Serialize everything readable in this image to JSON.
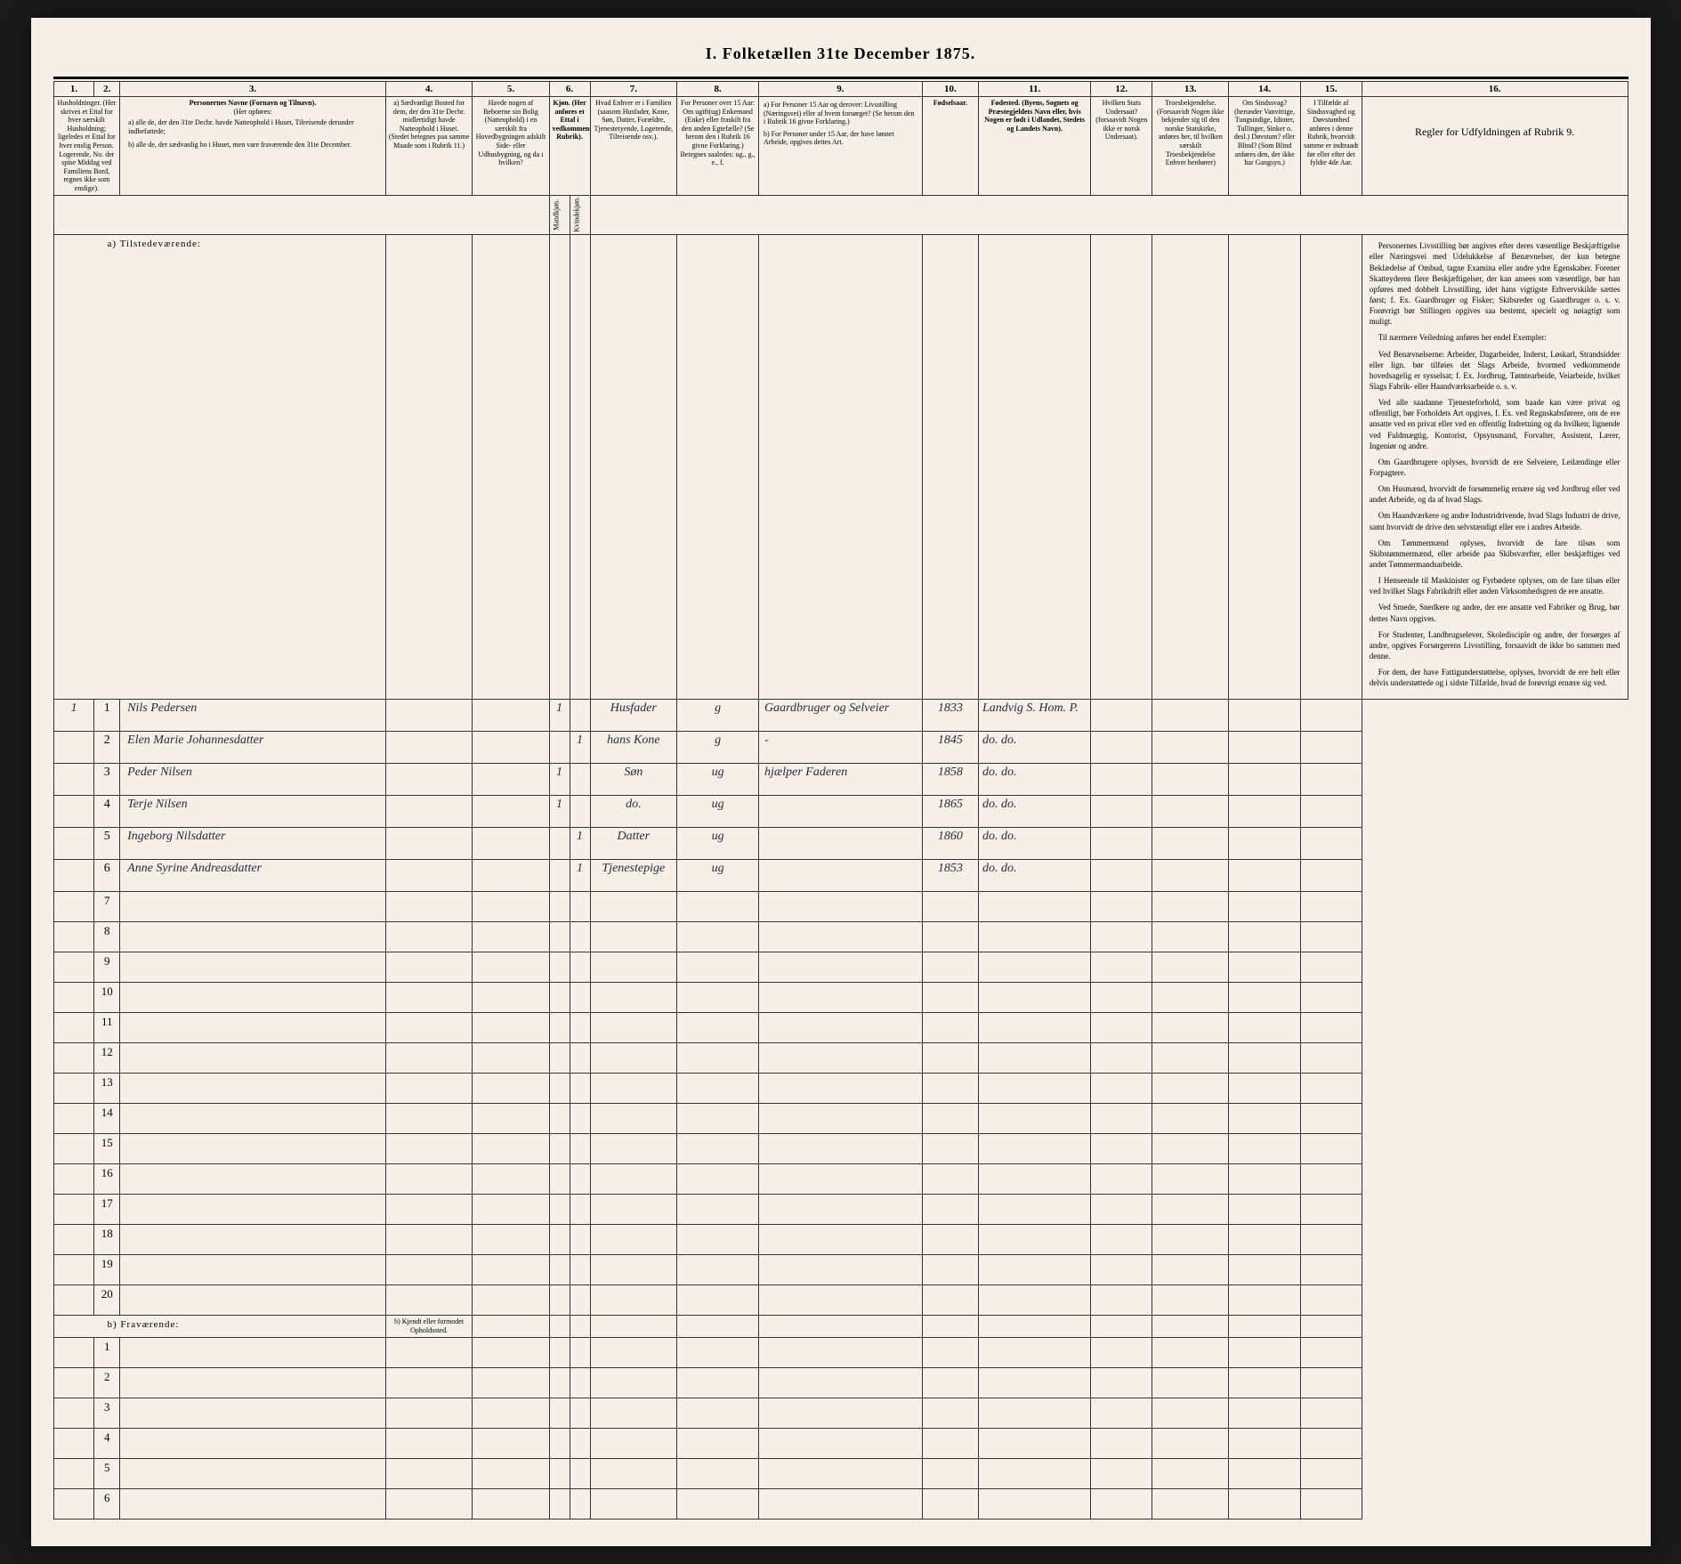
{
  "title": "I. Folketællen 31te December 1875.",
  "columns": {
    "nums": [
      "1.",
      "2.",
      "3.",
      "4.",
      "5.",
      "6.",
      "7.",
      "8.",
      "9.",
      "10.",
      "11.",
      "12.",
      "13.",
      "14.",
      "15.",
      "16."
    ],
    "widths": [
      40,
      25,
      260,
      85,
      75,
      20,
      20,
      85,
      80,
      160,
      55,
      110,
      60,
      75,
      70,
      60,
      260
    ],
    "headers": {
      "c1": "Husholdninger. (Her skrives et Ettal for hver særskilt Husholdning; ligeledes et Ettal for hver enslig Person. Logerende, No. der spise Middag ved Familiens Bord, regnes ikke som enslige).",
      "c3_title": "Personernes Navne (Fornavn og Tilnavn).",
      "c3_sub": "(Her opføres:",
      "c3_a": "a) alle de, der den 31te Decbr. havde Natteophold i Huset, Tilreisende derunder indbefattede;",
      "c3_b": "b) alle de, der sædvanlig bo i Huset, men vare fraværende den 31te December.",
      "c4": "a) Sædvanligt Bosted for dem, der den 31te Decbr. midlertidigt havde Natteophold i Huset. (Stedet betegnes paa samme Maade som i Rubrik 11.)",
      "c5": "Havde nogen af Beboerne sin Bolig (Natteophold) i en særskilt fra Hovedbygningen adskilt Side- eller Udhusbygning, og da i hvilken?",
      "c6": "Kjøn. (Her anføres et Ettal i vedkommende Rubrik).",
      "c6_m": "Mandkjøn.",
      "c6_k": "Kvindekjøn.",
      "c7": "Hvad Enhver er i Familien (saasom Husfader, Kone, Søn, Datter, Forældre, Tjenestetyende, Logerende, Tilreisende osv.).",
      "c8": "For Personer over 15 Aar: Om ugift(ug) Enkemand (Enke) eller fraskilt fra den anden Egtefælle? (Se herom den i Rubrik 16 givne Forklaring.) Betegnes saaledes: ug., g., e., f.",
      "c9_a": "a) For Personer 15 Aar og derover: Livsstilling (Næringsvei) eller af hvem forsørget? (Se herom den i Rubrik 16 givne Forklaring.)",
      "c9_b": "b) For Personer under 15 Aar, der have lønnet Arbeide, opgives dettes Art.",
      "c10": "Fødselsaar.",
      "c11": "Fødested. (Byens, Sognets og Præstegjeldets Navn eller, hvis Nogen er født i Udlandet, Stedets og Landets Navn).",
      "c12": "Hvilken Stats Undersaat? (forsaavidt Nogen ikke er norsk Undersaat).",
      "c13": "Troesbekjendelse. (Forsaavidt Nogen ikke bekjender sig til den norske Statskirke, anføres her, til hvilken særskilt Troesbekjendelse Enhver henhører)",
      "c14": "Om Sindssvag? (herunder Vanvittige, Tungsindige, Idioter, Tullinger, Sinker o. desl.) Døvstum? eller Blind? (Som Blind anføres den, der ikke har Gangsyn.)",
      "c15": "I Tilfælde af Sindssvaghed og Døvstumhed anføres i denne Rubrik, hvorvidt samme er indtraadt før eller efter det fyldte 4de Aar.",
      "c16_title": "Regler for Udfyldningen af Rubrik 9."
    }
  },
  "section_a": "a) Tilstedeværende:",
  "section_b": "b) Fraværende:",
  "section_b_col4": "b) Kjendt eller formodet Opholdssted.",
  "entries": [
    {
      "hh": "1",
      "n": "1",
      "name": "Nils Pedersen",
      "m": "1",
      "k": "",
      "rel": "Husfader",
      "ms": "g",
      "occ": "Gaardbruger og Selveier",
      "year": "1833",
      "place": "Landvig S. Hom. P."
    },
    {
      "hh": "",
      "n": "2",
      "name": "Elen Marie Johannesdatter",
      "m": "",
      "k": "1",
      "rel": "hans Kone",
      "ms": "g",
      "occ": "-",
      "year": "1845",
      "place": "do. do."
    },
    {
      "hh": "",
      "n": "3",
      "name": "Peder Nilsen",
      "m": "1",
      "k": "",
      "rel": "Søn",
      "ms": "ug",
      "occ": "hjælper Faderen",
      "year": "1858",
      "place": "do. do."
    },
    {
      "hh": "",
      "n": "4",
      "name": "Terje Nilsen",
      "m": "1",
      "k": "",
      "rel": "do.",
      "ms": "ug",
      "occ": "",
      "year": "1865",
      "place": "do. do."
    },
    {
      "hh": "",
      "n": "5",
      "name": "Ingeborg Nilsdatter",
      "m": "",
      "k": "1",
      "rel": "Datter",
      "ms": "ug",
      "occ": "",
      "year": "1860",
      "place": "do. do."
    },
    {
      "hh": "",
      "n": "6",
      "name": "Anne Syrine Andreasdatter",
      "m": "",
      "k": "1",
      "rel": "Tjenestepige",
      "ms": "ug",
      "occ": "",
      "year": "1853",
      "place": "do. do."
    }
  ],
  "empty_rows_a": [
    "7",
    "8",
    "9",
    "10",
    "11",
    "12",
    "13",
    "14",
    "15",
    "16",
    "17",
    "18",
    "19",
    "20"
  ],
  "empty_rows_b": [
    "1",
    "2",
    "3",
    "4",
    "5",
    "6"
  ],
  "rules_text": [
    "Personernes Livsstilling bør angives efter deres væsentlige Beskjæftigelse eller Næringsvei med Udelukkelse af Benævnelser, der kun betegne Beklædelse af Ombud, tagne Examina eller andre ydre Egenskaber. Forener Skatteyderen flere Beskjæftigelser, der kan ansees som væsentlige, bør han opføres med dobbelt Livsstilling, idet hans vigtigste Erhvervskilde sættes først; f. Ex. Gaardbruger og Fisker; Skibsreder og Gaardbruger o. s. v. Forøvrigt bør Stillingen opgives saa bestemt, specielt og nøiagtigt som muligt.",
    "Til nærmere Veiledning anføres her endel Exempler:",
    "Ved Benævnelserne: Arbeider, Dagarbeider, Inderst, Løskarl, Strandsidder eller lign. bør tilføies det Slags Arbeide, hvormed vedkommende hovedsagelig er sysselsat; f. Ex. Jordbrug, Tømtearbeide, Veiarbeide, hvilket Slags Fabrik- eller Haandværksarbeide o. s. v.",
    "Ved alle saadanne Tjenesteforhold, som baade kan være privat og offentligt, bør Forholdets Art opgives, f. Ex. ved Regnskabsførere, om de ere ansatte ved en privat eller ved en offentlig Indretning og da hvilken; lignende ved Fuldmægtig, Kontorist, Opsynsmand, Forvalter, Assistent, Lærer, Ingeniør og andre.",
    "Om Gaardbrugere oplyses, hvorvidt de ere Selveiere, Leilændinge eller Forpagtere.",
    "Om Husmænd, hvorvidt de forsømmelig ernære sig ved Jordbrug eller ved andet Arbeide, og da af hvad Slags.",
    "Om Haandværkere og andre Industridrivende, hvad Slags Industri de drive, samt hvorvidt de drive den selvstændigt eller ere i andres Arbeide.",
    "Om Tømmermænd oplyses, hvorvidt de fare tilsøs som Skibstømmermænd, eller arbeide paa Skibsværfter, eller beskjæftiges ved andet Tømmermandsarbeide.",
    "I Henseende til Maskinister og Fyrbødere oplyses, om de fare tilsøs eller ved hvilket Slags Fabrikdrift eller anden Virksomhedsgren de ere ansatte.",
    "Ved Smede, Snedkere og andre, der ere ansatte ved Fabriker og Brug, bør dettes Navn opgives.",
    "For Studenter, Landbrugselever, Skoledisciple og andre, der forsørges af andre, opgives Forsørgerens Livsstilling, forsaavidt de ikke bo sammen med denne.",
    "For dem, der have Fattigunderstøttelse, oplyses, hvorvidt de ere helt eller delvis understøttede og i sidste Tilfælde, hvad de forøvrigt ernære sig ved."
  ]
}
